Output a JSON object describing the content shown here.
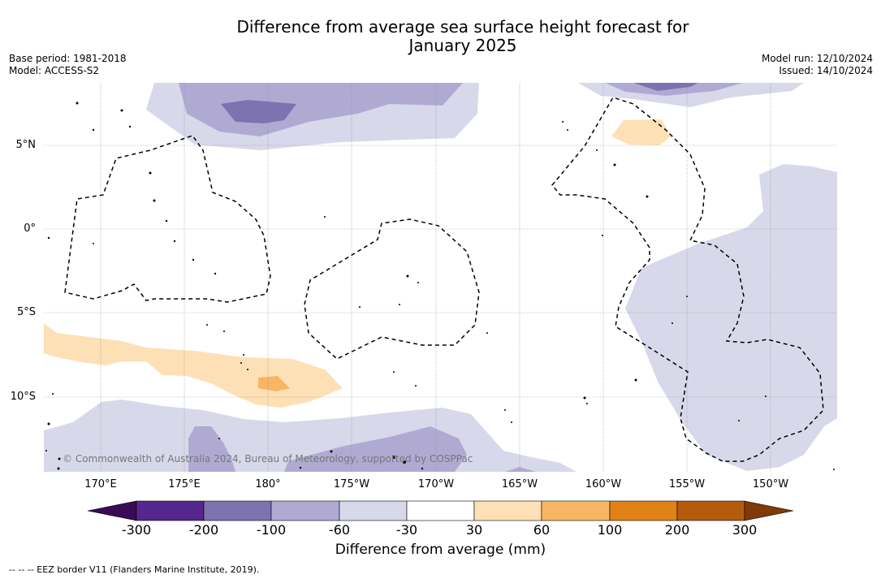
{
  "title": {
    "line1": "Difference from average sea surface height forecast for",
    "line2": "January 2025"
  },
  "meta_left": {
    "base_period": "Base period: 1981-2018",
    "model": "Model: ACCESS-S2"
  },
  "meta_right": {
    "model_run": "Model run: 12/10/2024",
    "issued": "Issued: 14/10/2024"
  },
  "map": {
    "longitude_labels": [
      "170°E",
      "175°E",
      "180°",
      "175°W",
      "170°W",
      "165°W",
      "160°W",
      "155°W",
      "150°W"
    ],
    "latitude_labels": [
      "5°N",
      "0°",
      "5°S",
      "10°S"
    ],
    "copyright": "© Commonwealth of Australia 2024, Bureau of Meteorology, supported by COSPPac",
    "colors": {
      "neg_300": "#3a0a56",
      "neg_200_300": "#54278f",
      "neg_100_200": "#7f72b0",
      "neg_60_100": "#b0aad3",
      "neg_30_60": "#d8d8eb",
      "neutral": "#ffffff",
      "pos_30_60": "#fde0b6",
      "pos_60_100": "#f8b664",
      "pos_100_200": "#e08217",
      "pos_200_300": "#b45b0c",
      "pos_300": "#7f3a08"
    }
  },
  "colorbar": {
    "ticks": [
      "-300",
      "-200",
      "-100",
      "-60",
      "-30",
      "30",
      "60",
      "100",
      "200",
      "300"
    ],
    "title": "Difference from average (mm)"
  },
  "footnote": "--  --  -- EEZ border V11 (Flanders Marine Institute, 2019)."
}
